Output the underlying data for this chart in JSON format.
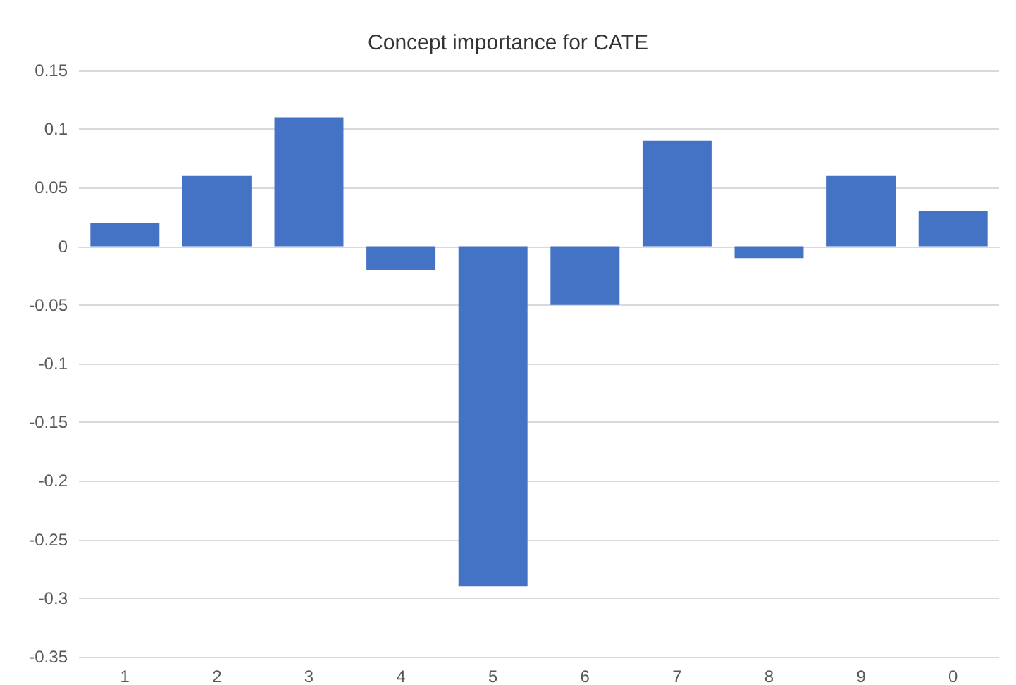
{
  "chart_data": {
    "type": "bar",
    "title": "Concept importance for CATE",
    "categories": [
      "1",
      "2",
      "3",
      "4",
      "5",
      "6",
      "7",
      "8",
      "9",
      "0"
    ],
    "values": [
      0.02,
      0.06,
      0.11,
      -0.02,
      -0.29,
      -0.05,
      0.09,
      -0.01,
      0.06,
      0.03
    ],
    "color": "#4472c4",
    "ylim": [
      -0.35,
      0.15
    ],
    "yticks": [
      -0.35,
      -0.3,
      -0.25,
      -0.2,
      -0.15,
      -0.1,
      -0.05,
      0,
      0.05,
      0.1,
      0.15
    ],
    "grid": "y"
  }
}
